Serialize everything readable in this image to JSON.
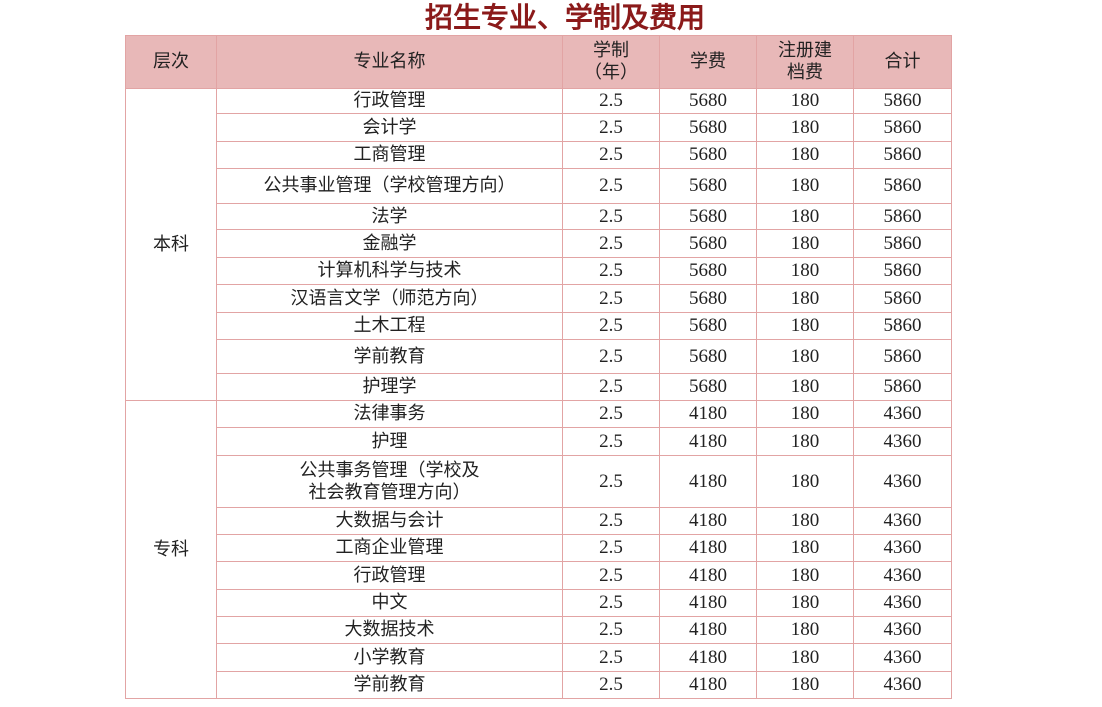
{
  "title": "招生专业、学制及费用",
  "table": {
    "header": [
      "层次",
      "专业名称",
      [
        "学制",
        "（年）"
      ],
      "学费",
      [
        "注册建",
        "档费"
      ],
      "合计"
    ],
    "groups": [
      {
        "level": "本科",
        "rows": [
          [
            "行政管理",
            2.5,
            5680,
            180,
            5860
          ],
          [
            "会计学",
            2.5,
            5680,
            180,
            5860
          ],
          [
            "工商管理",
            2.5,
            5680,
            180,
            5860
          ],
          [
            "公共事业管理（学校管理方向）",
            2.5,
            5680,
            180,
            5860
          ],
          [
            "法学",
            2.5,
            5680,
            180,
            5860
          ],
          [
            "金融学",
            2.5,
            5680,
            180,
            5860
          ],
          [
            "计算机科学与技术",
            2.5,
            5680,
            180,
            5860
          ],
          [
            "汉语言文学（师范方向）",
            2.5,
            5680,
            180,
            5860
          ],
          [
            "土木工程",
            2.5,
            5680,
            180,
            5860
          ],
          [
            "学前教育",
            2.5,
            5680,
            180,
            5860
          ],
          [
            "护理学",
            2.5,
            5680,
            180,
            5860
          ]
        ]
      },
      {
        "level": "专科",
        "rows": [
          [
            "法律事务",
            2.5,
            4180,
            180,
            4360
          ],
          [
            "护理",
            2.5,
            4180,
            180,
            4360
          ],
          [
            [
              "公共事务管理（学校及",
              "社会教育管理方向）"
            ],
            2.5,
            4180,
            180,
            4360
          ],
          [
            "大数据与会计",
            2.5,
            4180,
            180,
            4360
          ],
          [
            "工商企业管理",
            2.5,
            4180,
            180,
            4360
          ],
          [
            "行政管理",
            2.5,
            4180,
            180,
            4360
          ],
          [
            "中文",
            2.5,
            4180,
            180,
            4360
          ],
          [
            "大数据技术",
            2.5,
            4180,
            180,
            4360
          ],
          [
            "小学教育",
            2.5,
            4180,
            180,
            4360
          ],
          [
            "学前教育",
            2.5,
            4180,
            180,
            4360
          ]
        ]
      }
    ]
  }
}
